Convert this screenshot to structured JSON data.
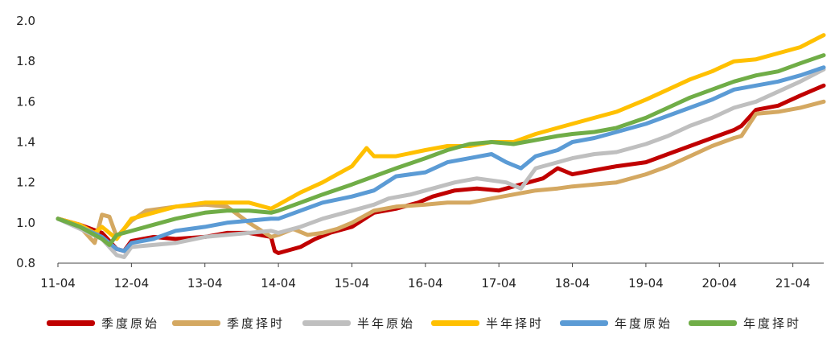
{
  "chart_data": {
    "type": "line",
    "title": "",
    "xlabel": "",
    "ylabel": "",
    "ylim": [
      0.8,
      2.0
    ],
    "yticks": [
      "0.8",
      "1.0",
      "1.2",
      "1.4",
      "1.6",
      "1.8",
      "2.0"
    ],
    "xticks": [
      "11-04",
      "12-04",
      "13-04",
      "14-04",
      "15-04",
      "16-04",
      "17-04",
      "18-04",
      "19-04",
      "20-04",
      "21-04"
    ],
    "xlim": [
      0,
      10.42
    ],
    "grid": false,
    "legend_position": "bottom",
    "series": [
      {
        "name": "季度原始",
        "color": "#C00000",
        "x": [
          0,
          0.3,
          0.6,
          0.8,
          0.9,
          1.0,
          1.3,
          1.6,
          2.0,
          2.3,
          2.6,
          2.9,
          2.95,
          3.0,
          3.3,
          3.5,
          3.7,
          4.0,
          4.3,
          4.6,
          4.9,
          5.1,
          5.4,
          5.7,
          6.0,
          6.3,
          6.6,
          6.8,
          7.0,
          7.3,
          7.6,
          8.0,
          8.3,
          8.6,
          8.9,
          9.2,
          9.3,
          9.5,
          9.8,
          10.1,
          10.42
        ],
        "values": [
          1.02,
          0.99,
          0.95,
          0.87,
          0.86,
          0.91,
          0.93,
          0.92,
          0.93,
          0.95,
          0.95,
          0.93,
          0.86,
          0.85,
          0.88,
          0.92,
          0.95,
          0.98,
          1.05,
          1.07,
          1.1,
          1.13,
          1.16,
          1.17,
          1.16,
          1.19,
          1.22,
          1.27,
          1.24,
          1.26,
          1.28,
          1.3,
          1.34,
          1.38,
          1.42,
          1.46,
          1.48,
          1.56,
          1.58,
          1.63,
          1.68
        ]
      },
      {
        "name": "季度择时",
        "color": "#D4A861",
        "x": [
          0,
          0.3,
          0.5,
          0.6,
          0.7,
          0.8,
          1.0,
          1.2,
          1.6,
          2.0,
          2.3,
          2.6,
          2.9,
          3.0,
          3.2,
          3.4,
          3.6,
          3.8,
          4.0,
          4.3,
          4.6,
          5.0,
          5.3,
          5.6,
          5.9,
          6.2,
          6.5,
          6.8,
          7.0,
          7.3,
          7.6,
          8.0,
          8.3,
          8.6,
          8.9,
          9.2,
          9.3,
          9.5,
          9.8,
          10.1,
          10.42
        ],
        "values": [
          1.02,
          0.98,
          0.9,
          1.04,
          1.03,
          0.93,
          1.01,
          1.06,
          1.08,
          1.09,
          1.08,
          1.0,
          0.93,
          0.94,
          0.97,
          0.94,
          0.95,
          0.97,
          1.0,
          1.06,
          1.08,
          1.09,
          1.1,
          1.1,
          1.12,
          1.14,
          1.16,
          1.17,
          1.18,
          1.19,
          1.2,
          1.24,
          1.28,
          1.33,
          1.38,
          1.42,
          1.43,
          1.54,
          1.55,
          1.57,
          1.6
        ]
      },
      {
        "name": "半年原始",
        "color": "#BFBFBF",
        "x": [
          0,
          0.3,
          0.6,
          0.8,
          0.9,
          1.0,
          1.3,
          1.6,
          2.0,
          2.3,
          2.6,
          2.9,
          3.0,
          3.3,
          3.6,
          4.0,
          4.3,
          4.5,
          4.8,
          5.1,
          5.4,
          5.7,
          5.9,
          6.1,
          6.3,
          6.5,
          6.8,
          7.0,
          7.3,
          7.6,
          8.0,
          8.3,
          8.6,
          8.9,
          9.2,
          9.5,
          9.8,
          10.1,
          10.42
        ],
        "values": [
          1.02,
          0.97,
          0.92,
          0.84,
          0.83,
          0.88,
          0.89,
          0.9,
          0.93,
          0.94,
          0.95,
          0.96,
          0.95,
          0.98,
          1.02,
          1.06,
          1.09,
          1.12,
          1.14,
          1.17,
          1.2,
          1.22,
          1.21,
          1.2,
          1.17,
          1.27,
          1.3,
          1.32,
          1.34,
          1.35,
          1.39,
          1.43,
          1.48,
          1.52,
          1.57,
          1.6,
          1.65,
          1.7,
          1.76
        ]
      },
      {
        "name": "半年择时",
        "color": "#FFC000",
        "x": [
          0,
          0.3,
          0.5,
          0.6,
          0.8,
          1.0,
          1.3,
          1.6,
          2.0,
          2.3,
          2.6,
          2.9,
          3.0,
          3.3,
          3.6,
          3.8,
          4.0,
          4.2,
          4.3,
          4.6,
          5.0,
          5.3,
          5.6,
          5.9,
          6.2,
          6.5,
          6.8,
          7.0,
          7.3,
          7.6,
          8.0,
          8.3,
          8.6,
          8.9,
          9.2,
          9.5,
          9.8,
          10.1,
          10.42
        ],
        "values": [
          1.02,
          0.99,
          0.95,
          0.98,
          0.92,
          1.02,
          1.05,
          1.08,
          1.1,
          1.1,
          1.1,
          1.07,
          1.09,
          1.15,
          1.2,
          1.24,
          1.28,
          1.37,
          1.33,
          1.33,
          1.36,
          1.38,
          1.38,
          1.4,
          1.4,
          1.44,
          1.47,
          1.49,
          1.52,
          1.55,
          1.61,
          1.66,
          1.71,
          1.75,
          1.8,
          1.81,
          1.84,
          1.87,
          1.93
        ]
      },
      {
        "name": "年度原始",
        "color": "#5B9BD5",
        "x": [
          0,
          0.3,
          0.6,
          0.8,
          0.9,
          1.0,
          1.3,
          1.6,
          2.0,
          2.3,
          2.6,
          2.9,
          3.0,
          3.3,
          3.6,
          4.0,
          4.3,
          4.6,
          5.0,
          5.3,
          5.6,
          5.9,
          6.1,
          6.3,
          6.5,
          6.8,
          7.0,
          7.3,
          7.6,
          8.0,
          8.3,
          8.6,
          8.9,
          9.2,
          9.5,
          9.8,
          10.1,
          10.42
        ],
        "values": [
          1.02,
          0.98,
          0.93,
          0.87,
          0.86,
          0.9,
          0.92,
          0.96,
          0.98,
          1.0,
          1.01,
          1.02,
          1.02,
          1.06,
          1.1,
          1.13,
          1.16,
          1.23,
          1.25,
          1.3,
          1.32,
          1.34,
          1.3,
          1.27,
          1.33,
          1.36,
          1.4,
          1.42,
          1.45,
          1.49,
          1.53,
          1.57,
          1.61,
          1.66,
          1.68,
          1.7,
          1.73,
          1.77
        ]
      },
      {
        "name": "年度择时",
        "color": "#70AD47",
        "x": [
          0,
          0.3,
          0.6,
          0.7,
          0.8,
          1.0,
          1.3,
          1.6,
          2.0,
          2.3,
          2.6,
          2.9,
          3.0,
          3.3,
          3.6,
          4.0,
          4.3,
          4.6,
          5.0,
          5.3,
          5.6,
          5.9,
          6.2,
          6.5,
          6.8,
          7.0,
          7.3,
          7.6,
          8.0,
          8.3,
          8.6,
          8.9,
          9.2,
          9.5,
          9.8,
          10.1,
          10.42
        ],
        "values": [
          1.02,
          0.98,
          0.92,
          0.89,
          0.94,
          0.96,
          0.99,
          1.02,
          1.05,
          1.06,
          1.06,
          1.05,
          1.06,
          1.1,
          1.14,
          1.19,
          1.23,
          1.27,
          1.32,
          1.36,
          1.39,
          1.4,
          1.39,
          1.41,
          1.43,
          1.44,
          1.45,
          1.47,
          1.52,
          1.57,
          1.62,
          1.66,
          1.7,
          1.73,
          1.75,
          1.79,
          1.83
        ]
      }
    ]
  }
}
